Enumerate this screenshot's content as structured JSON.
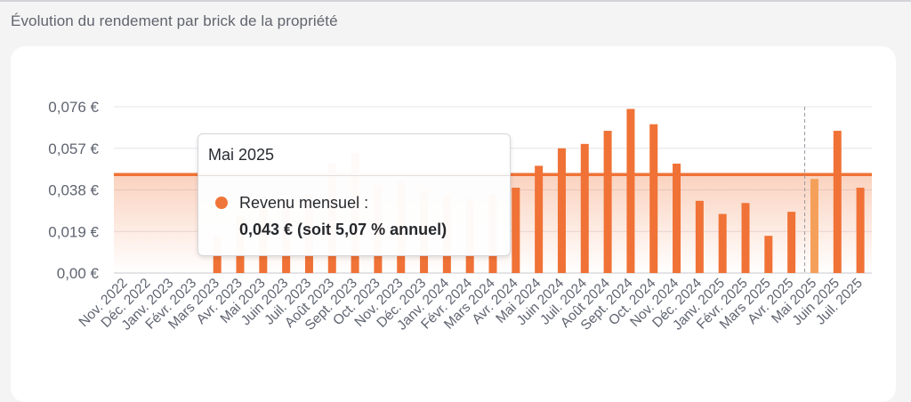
{
  "page": {
    "title": "Évolution du rendement par brick de la propriété"
  },
  "tooltip": {
    "title": "Mai 2025",
    "series_label": "Revenu mensuel :",
    "value_text": "0,043 € (soit 5,07 % annuel)"
  },
  "chart_data": {
    "type": "bar",
    "categories": [
      "Nov. 2022",
      "Déc. 2022",
      "Janv. 2023",
      "Févr. 2023",
      "Mars 2023",
      "Avr. 2023",
      "Mai 2023",
      "Juin 2023",
      "Juil. 2023",
      "Août 2023",
      "Sept. 2023",
      "Oct. 2023",
      "Nov. 2023",
      "Déc. 2023",
      "Janv. 2024",
      "Févr. 2024",
      "Mars 2024",
      "Avr. 2024",
      "Mai 2024",
      "Juin 2024",
      "Juil. 2024",
      "Août 2024",
      "Sept. 2024",
      "Oct. 2024",
      "Nov. 2024",
      "Déc. 2024",
      "Janv. 2025",
      "Févr. 2025",
      "Mars 2025",
      "Avr. 2025",
      "Mai 2025",
      "Juin 2025",
      "Juil. 2025"
    ],
    "series": [
      {
        "values": [
          0,
          0,
          0,
          0,
          0.017,
          0.026,
          0.03,
          0.034,
          0.036,
          0.05,
          0.055,
          0.04,
          0.042,
          0.038,
          0.036,
          0.034,
          0.036,
          0.039,
          0.049,
          0.057,
          0.059,
          0.065,
          0.075,
          0.068,
          0.05,
          0.033,
          0.027,
          0.032,
          0.017,
          0.028,
          0.043,
          0.065,
          0.039
        ],
        "color": "#f07236"
      }
    ],
    "average_line": {
      "value": 0.045,
      "color": "#f07236"
    },
    "highlight_index": 30,
    "y_ticks": [
      "0,00 €",
      "0,019 €",
      "0,038 €",
      "0,057 €",
      "0,076 €"
    ],
    "y_tick_values": [
      0,
      0.019,
      0.038,
      0.057,
      0.076
    ],
    "ylim": [
      0,
      0.076
    ],
    "grid": true
  }
}
